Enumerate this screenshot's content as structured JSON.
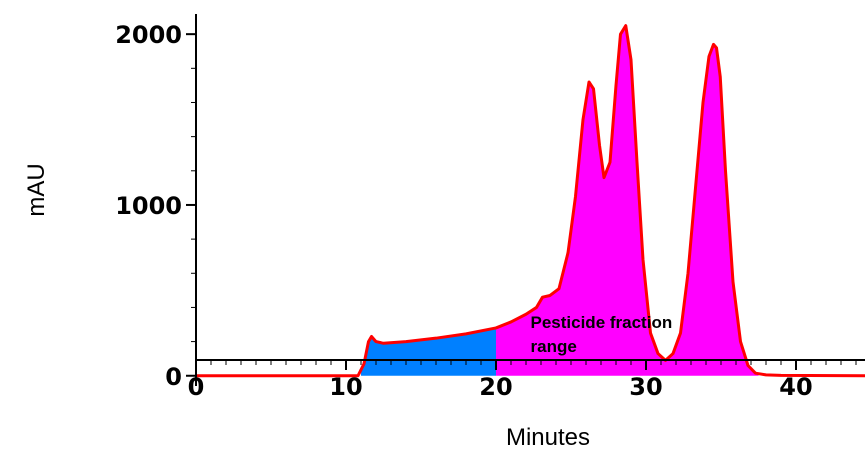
{
  "chart_data": {
    "type": "area",
    "xlabel": "Minutes",
    "ylabel": "mAU",
    "xlim": [
      0,
      44.6
    ],
    "ylim": [
      -60,
      2200
    ],
    "x_ticks": [
      0,
      10,
      20,
      30,
      40
    ],
    "x_tick_labels": [
      "0",
      "10",
      "20",
      "30",
      "40"
    ],
    "x_minor_step": 1,
    "y_ticks": [
      0,
      1000,
      2000
    ],
    "y_tick_labels": [
      "0",
      "1000",
      "2000"
    ],
    "y_minor_step": 200,
    "grid": false,
    "line_color": "#ff0000",
    "shaded_regions": [
      {
        "x_start": 11,
        "x_end": 20,
        "color": "#0080ff"
      },
      {
        "x_start": 20,
        "x_end": 37.5,
        "color": "#ff00ff"
      }
    ],
    "annotation": {
      "lines": [
        "Pesticide fraction",
        "range"
      ],
      "x": 22.3,
      "y": 280
    },
    "series": [
      {
        "x": [
          0,
          10.8,
          11.2,
          11.5,
          11.7,
          12.0,
          12.5,
          14,
          16,
          18,
          20,
          21,
          22,
          22.7,
          23.1,
          23.6,
          24.2,
          24.8,
          25.3,
          25.8,
          26.2,
          26.5,
          26.9,
          27.2,
          27.6,
          28.0,
          28.3,
          28.65,
          29.0,
          29.4,
          29.8,
          30.3,
          30.8,
          31.3,
          31.8,
          32.3,
          32.8,
          33.3,
          33.8,
          34.2,
          34.5,
          34.7,
          34.95,
          35.3,
          35.8,
          36.3,
          36.8,
          37.3,
          38,
          39,
          44.6
        ],
        "y": [
          0,
          0,
          70,
          200,
          230,
          200,
          190,
          200,
          220,
          245,
          280,
          315,
          360,
          400,
          460,
          470,
          510,
          720,
          1050,
          1500,
          1720,
          1680,
          1350,
          1160,
          1250,
          1700,
          2000,
          2050,
          1850,
          1250,
          680,
          250,
          130,
          90,
          130,
          250,
          600,
          1100,
          1600,
          1870,
          1940,
          1920,
          1750,
          1200,
          550,
          200,
          60,
          15,
          5,
          2,
          0
        ]
      }
    ]
  }
}
